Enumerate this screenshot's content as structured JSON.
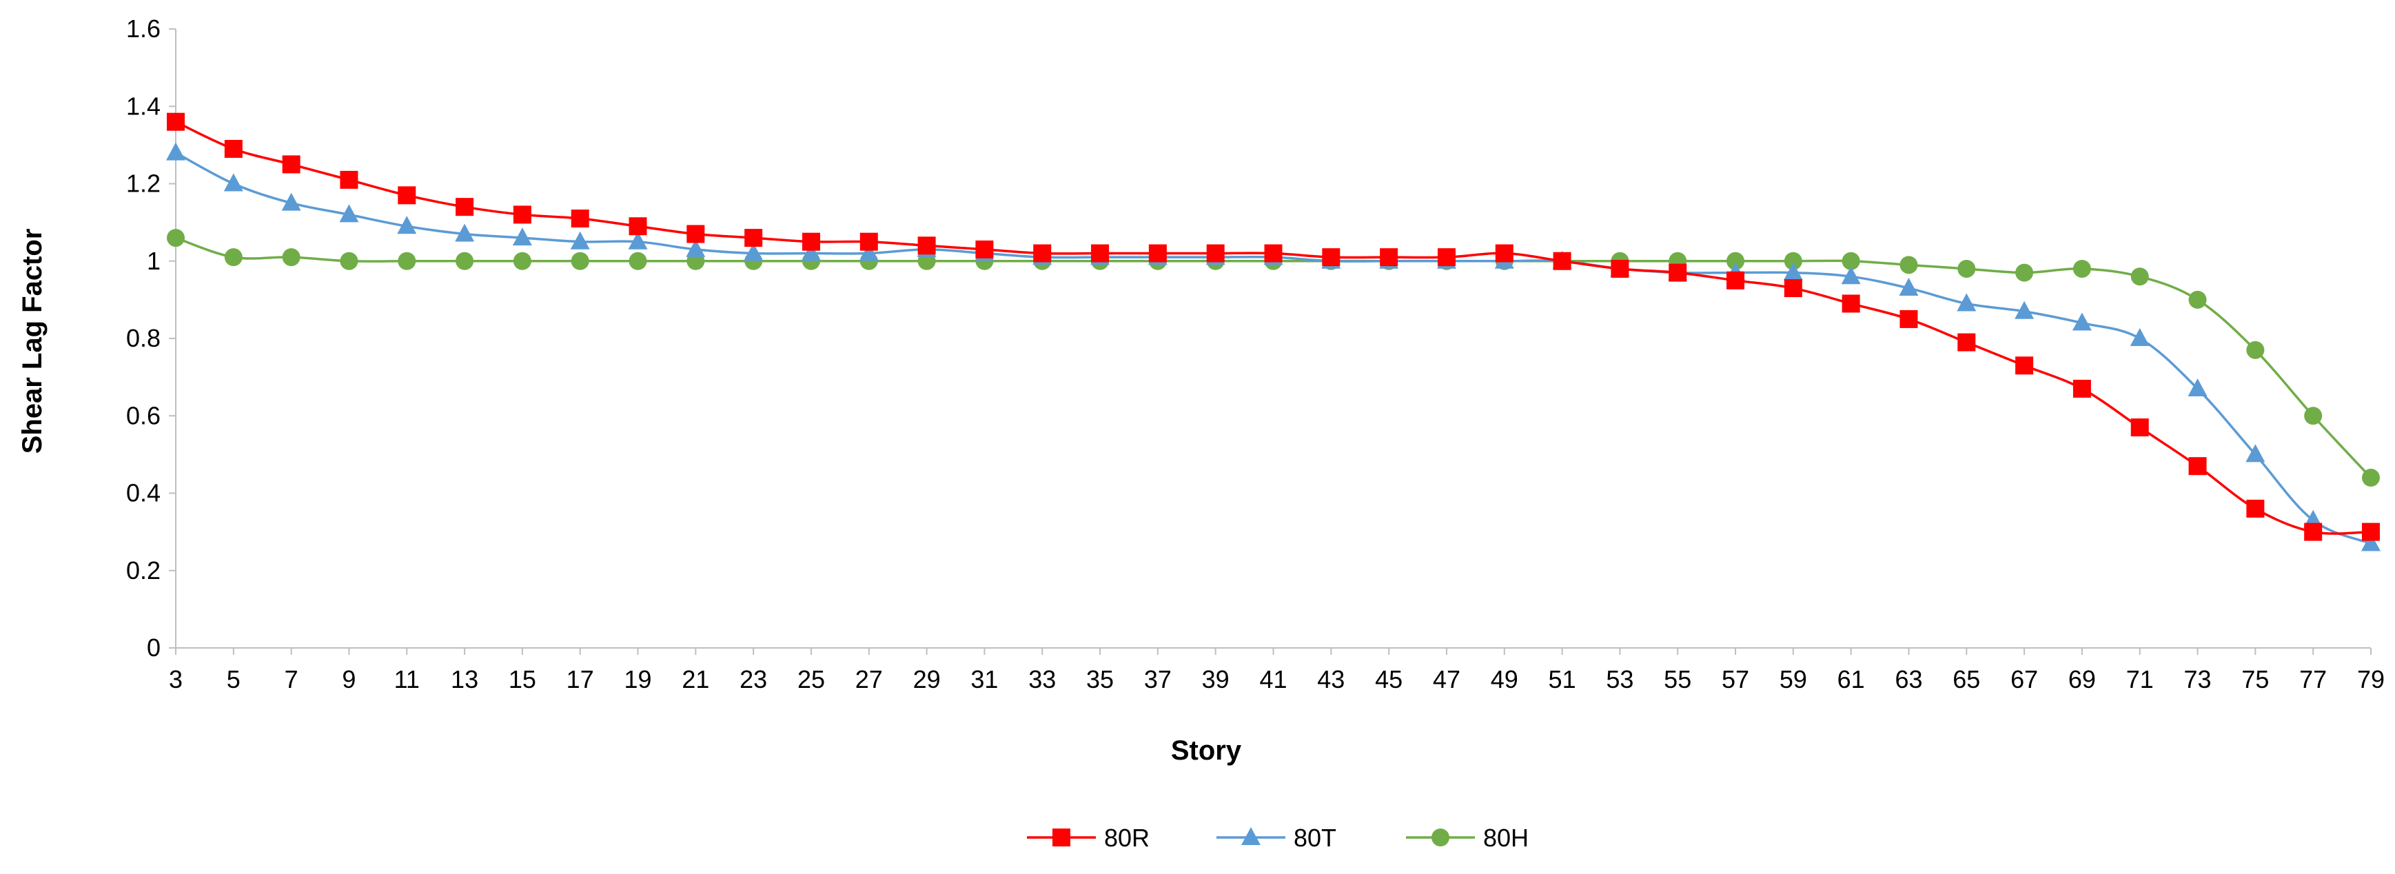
{
  "chart_data": {
    "type": "line",
    "title": "",
    "xlabel": "Story",
    "ylabel": "Shear Lag Factor",
    "ylim": [
      0,
      1.6
    ],
    "yticks": [
      "0",
      "0.2",
      "0.4",
      "0.6",
      "0.8",
      "1",
      "1.2",
      "1.4",
      "1.6"
    ],
    "grid": false,
    "legend_position": "bottom",
    "categories": [
      "3",
      "5",
      "7",
      "9",
      "11",
      "13",
      "15",
      "17",
      "19",
      "21",
      "23",
      "25",
      "27",
      "29",
      "31",
      "33",
      "35",
      "37",
      "39",
      "41",
      "43",
      "45",
      "47",
      "49",
      "51",
      "53",
      "55",
      "57",
      "59",
      "61",
      "63",
      "65",
      "67",
      "69",
      "71",
      "73",
      "75",
      "77",
      "79"
    ],
    "series": [
      {
        "name": "80R",
        "color": "#ff0000",
        "marker": "square",
        "values": [
          1.36,
          1.29,
          1.25,
          1.21,
          1.17,
          1.14,
          1.12,
          1.11,
          1.09,
          1.07,
          1.06,
          1.05,
          1.05,
          1.04,
          1.03,
          1.02,
          1.02,
          1.02,
          1.02,
          1.02,
          1.01,
          1.01,
          1.01,
          1.02,
          1.0,
          0.98,
          0.97,
          0.95,
          0.93,
          0.89,
          0.85,
          0.79,
          0.73,
          0.67,
          0.57,
          0.47,
          0.36,
          0.3,
          0.3
        ]
      },
      {
        "name": "80T",
        "color": "#5b9bd5",
        "marker": "triangle",
        "values": [
          1.28,
          1.2,
          1.15,
          1.12,
          1.09,
          1.07,
          1.06,
          1.05,
          1.05,
          1.03,
          1.02,
          1.02,
          1.02,
          1.03,
          1.02,
          1.01,
          1.01,
          1.01,
          1.01,
          1.01,
          1.0,
          1.0,
          1.0,
          1.0,
          1.0,
          0.98,
          0.97,
          0.97,
          0.97,
          0.96,
          0.93,
          0.89,
          0.87,
          0.84,
          0.8,
          0.67,
          0.5,
          0.33,
          0.27
        ]
      },
      {
        "name": "80H",
        "color": "#70ad47",
        "marker": "circle",
        "values": [
          1.06,
          1.01,
          1.01,
          1.0,
          1.0,
          1.0,
          1.0,
          1.0,
          1.0,
          1.0,
          1.0,
          1.0,
          1.0,
          1.0,
          1.0,
          1.0,
          1.0,
          1.0,
          1.0,
          1.0,
          1.0,
          1.0,
          1.0,
          1.0,
          1.0,
          1.0,
          1.0,
          1.0,
          1.0,
          1.0,
          0.99,
          0.98,
          0.97,
          0.98,
          0.96,
          0.9,
          0.77,
          0.6,
          0.44
        ]
      }
    ]
  }
}
